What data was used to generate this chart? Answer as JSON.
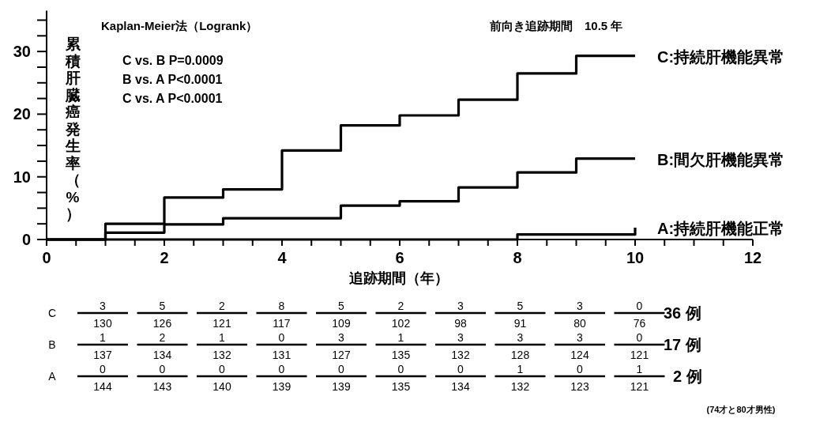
{
  "chart_data": [
    {
      "type": "step",
      "xlabel": "追跡期間（年）",
      "ylabel": "累積肝臓癌発生率（%）",
      "annotations": [
        "Kaplan-Meier法（Logrank）",
        "C vs. B  P=0.0009",
        "B vs. A  P<0.0001",
        "C vs. A  P<0.0001",
        "前向き追跡期間　10.5 年"
      ],
      "xlim": [
        0,
        12
      ],
      "ylim": [
        0,
        36.5
      ],
      "xticks": [
        0,
        {
          "value": 0.5,
          "label": null
        },
        {
          "value": 1,
          "label": null
        },
        {
          "value": 1.5,
          "label": null
        },
        2,
        {
          "value": 2.5,
          "label": null
        },
        {
          "value": 3,
          "label": null
        },
        {
          "value": 3.5,
          "label": null
        },
        4,
        {
          "value": 4.5,
          "label": null
        },
        {
          "value": 5,
          "label": null
        },
        {
          "value": 5.5,
          "label": null
        },
        6,
        {
          "value": 6.5,
          "label": null
        },
        {
          "value": 7,
          "label": null
        },
        {
          "value": 7.5,
          "label": null
        },
        8,
        {
          "value": 8.5,
          "label": null
        },
        {
          "value": 9,
          "label": null
        },
        {
          "value": 9.5,
          "label": null
        },
        10,
        {
          "value": 10.5,
          "label": null
        },
        {
          "value": 11,
          "label": null
        },
        {
          "value": 11.5,
          "label": null
        },
        12
      ],
      "yticks": [
        0,
        {
          "value": 2.5,
          "label": null
        },
        {
          "value": 5,
          "label": null
        },
        {
          "value": 7.5,
          "label": null
        },
        10,
        {
          "value": 12.5,
          "label": null
        },
        {
          "value": 15,
          "label": null
        },
        {
          "value": 17.5,
          "label": null
        },
        20,
        {
          "value": 22.5,
          "label": null
        },
        {
          "value": 25,
          "label": null
        },
        {
          "value": 27.5,
          "label": null
        },
        30,
        {
          "value": 32.5,
          "label": null
        },
        {
          "value": 35,
          "label": null
        }
      ],
      "series": [
        {
          "name": "C:持続肝機能異常",
          "color": "#000000",
          "x": [
            0,
            1,
            2,
            3,
            4,
            5,
            6,
            7,
            8,
            9,
            10
          ],
          "values": [
            0,
            2.5,
            6.7,
            8.0,
            14.2,
            18.2,
            19.8,
            22.3,
            26.5,
            29.3,
            29.3
          ]
        },
        {
          "name": "B:間欠肝機能異常",
          "color": "#000000",
          "x": [
            0,
            1,
            2,
            3,
            4,
            5,
            6,
            7,
            8,
            9,
            10
          ],
          "values": [
            0,
            1.1,
            2.4,
            3.4,
            3.4,
            5.4,
            6.1,
            8.3,
            10.7,
            12.9,
            12.9
          ]
        },
        {
          "name": "A:持続肝機能正常",
          "color": "#000000",
          "x": [
            0,
            8,
            10,
            10
          ],
          "values": [
            0,
            0.8,
            0.8,
            1.9
          ]
        }
      ]
    },
    {
      "type": "other",
      "annotations": [
        "C",
        "3",
        "5",
        "2",
        "8",
        "5",
        "2",
        "3",
        "5",
        "3",
        "0",
        "130",
        "126",
        "121",
        "117",
        "109",
        "102",
        "98",
        "91",
        "80",
        "76",
        "B",
        "1",
        "2",
        "1",
        "0",
        "3",
        "1",
        "3",
        "3",
        "3",
        "0",
        "137",
        "134",
        "132",
        "131",
        "127",
        "135",
        "132",
        "128",
        "124",
        "121",
        "A",
        "0",
        "0",
        "0",
        "0",
        "0",
        "0",
        "0",
        "1",
        "0",
        "1",
        "144",
        "143",
        "140",
        "139",
        "139",
        "135",
        "134",
        "132",
        "123",
        "121",
        "36 例",
        "17 例",
        "2 例",
        "(74才と80才男性)"
      ]
    }
  ]
}
